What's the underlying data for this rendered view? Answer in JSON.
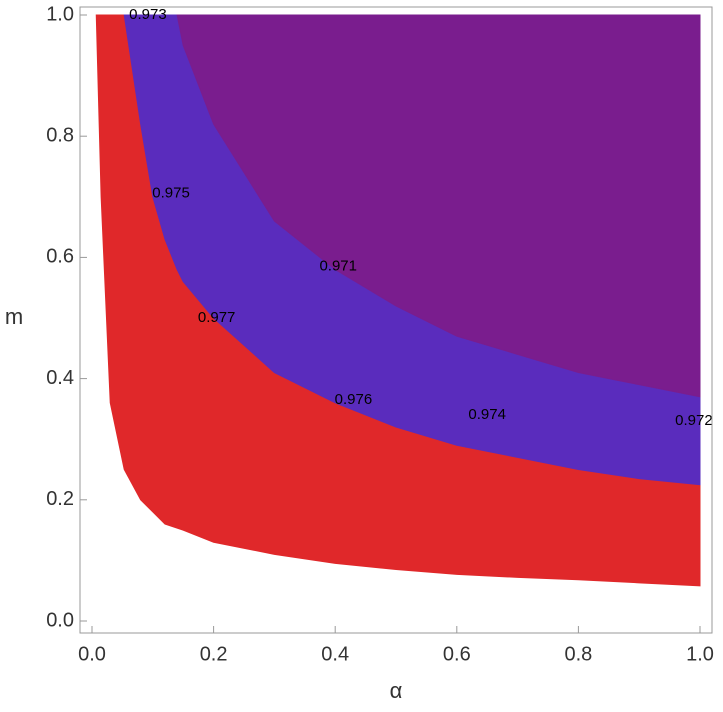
{
  "chart_data": {
    "type": "contour",
    "xlabel": "α",
    "ylabel": "m",
    "xlim": [
      0,
      1
    ],
    "ylim": [
      0,
      1
    ],
    "xticks": [
      {
        "value": 0,
        "label": "0.0"
      },
      {
        "value": 0.2,
        "label": "0.2"
      },
      {
        "value": 0.4,
        "label": "0.4"
      },
      {
        "value": 0.6,
        "label": "0.6"
      },
      {
        "value": 0.8,
        "label": "0.8"
      },
      {
        "value": 1,
        "label": "1.0"
      }
    ],
    "yticks": [
      {
        "value": 0,
        "label": "0.0"
      },
      {
        "value": 0.2,
        "label": "0.2"
      },
      {
        "value": 0.4,
        "label": "0.4"
      },
      {
        "value": 0.6,
        "label": "0.6"
      },
      {
        "value": 0.8,
        "label": "0.8"
      },
      {
        "value": 1,
        "label": "1.0"
      }
    ],
    "regions": [
      {
        "color": "#e0282a",
        "x": [
          0.007,
          0.015,
          0.03,
          0.053,
          0.08,
          0.1,
          0.12,
          0.15,
          0.2,
          0.3,
          0.4,
          0.5,
          0.6,
          0.7,
          0.8,
          0.9,
          1.0
        ],
        "lower": [
          1.0,
          0.7,
          0.36,
          0.25,
          0.2,
          0.18,
          0.16,
          0.15,
          0.13,
          0.11,
          0.095,
          0.085,
          0.077,
          0.072,
          0.068,
          0.063,
          0.058
        ],
        "upper": [
          1.0,
          1.0,
          1.0,
          1.0,
          0.82,
          0.7,
          0.63,
          0.56,
          0.5,
          0.41,
          0.36,
          0.32,
          0.29,
          0.27,
          0.25,
          0.235,
          0.225
        ]
      },
      {
        "color": "#5a2cbd",
        "x": [
          0.053,
          0.08,
          0.1,
          0.12,
          0.14,
          0.15,
          0.2,
          0.3,
          0.4,
          0.5,
          0.6,
          0.7,
          0.8,
          0.9,
          1.0
        ],
        "lower": [
          1.0,
          0.82,
          0.7,
          0.63,
          0.58,
          0.56,
          0.5,
          0.41,
          0.36,
          0.32,
          0.29,
          0.27,
          0.25,
          0.235,
          0.225
        ],
        "upper": [
          1.0,
          1.0,
          1.0,
          1.0,
          1.0,
          0.95,
          0.82,
          0.66,
          0.58,
          0.52,
          0.47,
          0.44,
          0.41,
          0.39,
          0.37
        ]
      },
      {
        "color": "#7a1d8e",
        "x": [
          0.14,
          0.15,
          0.2,
          0.3,
          0.4,
          0.5,
          0.6,
          0.7,
          0.8,
          0.9,
          1.0
        ],
        "lower": [
          1.0,
          0.95,
          0.82,
          0.66,
          0.58,
          0.52,
          0.47,
          0.44,
          0.41,
          0.39,
          0.37
        ],
        "upper": [
          1.0,
          1.0,
          1.0,
          1.0,
          1.0,
          1.0,
          1.0,
          1.0,
          1.0,
          1.0,
          1.0
        ]
      }
    ],
    "contour_labels": [
      {
        "text": "0.973",
        "x": 0.092,
        "y": 1.0
      },
      {
        "text": "0.975",
        "x": 0.13,
        "y": 0.705
      },
      {
        "text": "0.971",
        "x": 0.405,
        "y": 0.585
      },
      {
        "text": "0.977",
        "x": 0.205,
        "y": 0.5
      },
      {
        "text": "0.976",
        "x": 0.43,
        "y": 0.365
      },
      {
        "text": "0.974",
        "x": 0.65,
        "y": 0.34
      },
      {
        "text": "0.972",
        "x": 0.99,
        "y": 0.33
      }
    ]
  }
}
